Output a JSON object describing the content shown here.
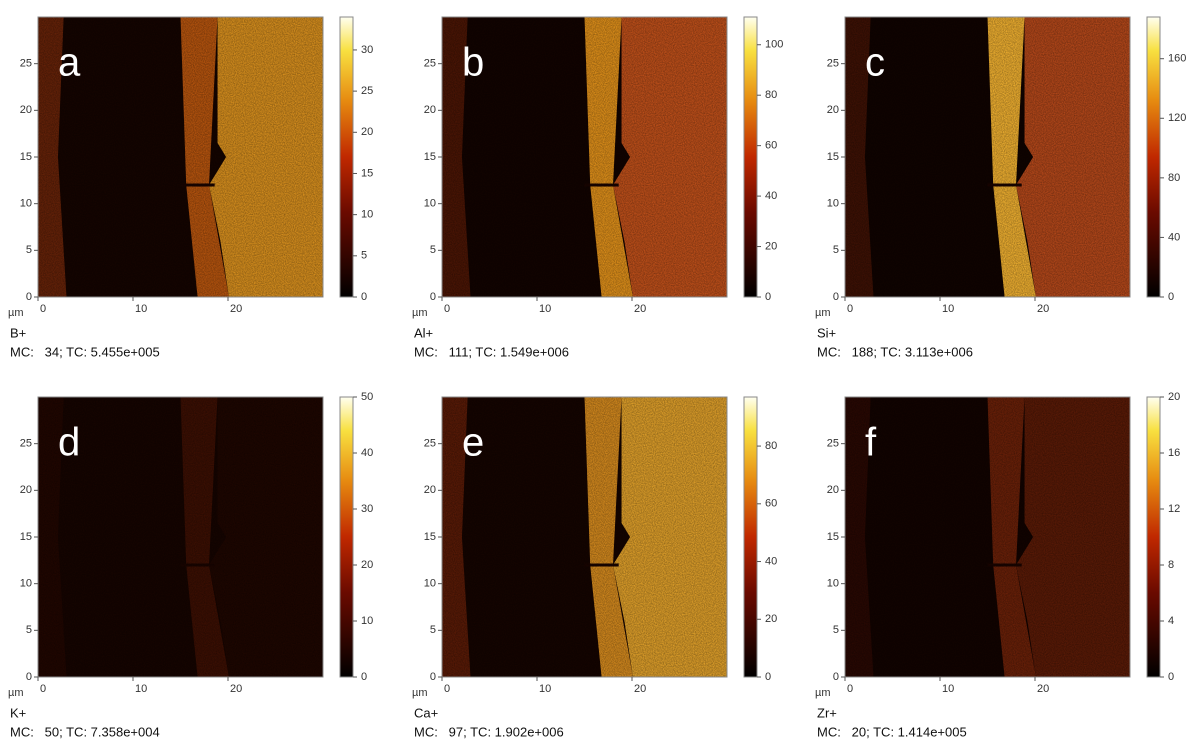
{
  "panels": [
    {
      "label": "a",
      "ion": "B+",
      "counts": "MC:   34; TC: 5.455e+005",
      "unit": "µm",
      "xlim": [
        0,
        30
      ],
      "xticks": [
        0,
        10,
        20
      ],
      "ylim": [
        0,
        30
      ],
      "yticks": [
        0,
        5,
        10,
        15,
        20,
        25
      ],
      "clim": [
        0,
        34
      ],
      "cticks": [
        0,
        5,
        10,
        15,
        20,
        25,
        30
      ]
    },
    {
      "label": "b",
      "ion": "Al+",
      "counts": "MC:   111; TC: 1.549e+006",
      "unit": "µm",
      "xlim": [
        0,
        30
      ],
      "xticks": [
        0,
        10,
        20
      ],
      "ylim": [
        0,
        30
      ],
      "yticks": [
        0,
        5,
        10,
        15,
        20,
        25
      ],
      "clim": [
        0,
        111
      ],
      "cticks": [
        0,
        20,
        40,
        60,
        80,
        100
      ]
    },
    {
      "label": "c",
      "ion": "Si+",
      "counts": "MC:   188; TC: 3.113e+006",
      "unit": "µm",
      "xlim": [
        0,
        30
      ],
      "xticks": [
        0,
        10,
        20
      ],
      "ylim": [
        0,
        30
      ],
      "yticks": [
        0,
        5,
        10,
        15,
        20,
        25
      ],
      "clim": [
        0,
        188
      ],
      "cticks": [
        0,
        40,
        80,
        120,
        160
      ]
    },
    {
      "label": "d",
      "ion": "K+",
      "counts": "MC:   50; TC: 7.358e+004",
      "unit": "µm",
      "xlim": [
        0,
        30
      ],
      "xticks": [
        0,
        10,
        20
      ],
      "ylim": [
        0,
        30
      ],
      "yticks": [
        0,
        5,
        10,
        15,
        20,
        25
      ],
      "clim": [
        0,
        50
      ],
      "cticks": [
        0,
        10,
        20,
        30,
        40,
        50
      ]
    },
    {
      "label": "e",
      "ion": "Ca+",
      "counts": "MC:   97; TC: 1.902e+006",
      "unit": "µm",
      "xlim": [
        0,
        30
      ],
      "xticks": [
        0,
        10,
        20
      ],
      "ylim": [
        0,
        30
      ],
      "yticks": [
        0,
        5,
        10,
        15,
        20,
        25
      ],
      "clim": [
        0,
        97
      ],
      "cticks": [
        0,
        20,
        40,
        60,
        80
      ]
    },
    {
      "label": "f",
      "ion": "Zr+",
      "counts": "MC:   20; TC: 1.414e+005",
      "unit": "µm",
      "xlim": [
        0,
        30
      ],
      "xticks": [
        0,
        10,
        20
      ],
      "ylim": [
        0,
        30
      ],
      "yticks": [
        0,
        5,
        10,
        15,
        20,
        25
      ],
      "clim": [
        0,
        20
      ],
      "cticks": [
        0,
        4,
        8,
        12,
        16,
        20
      ]
    }
  ]
}
